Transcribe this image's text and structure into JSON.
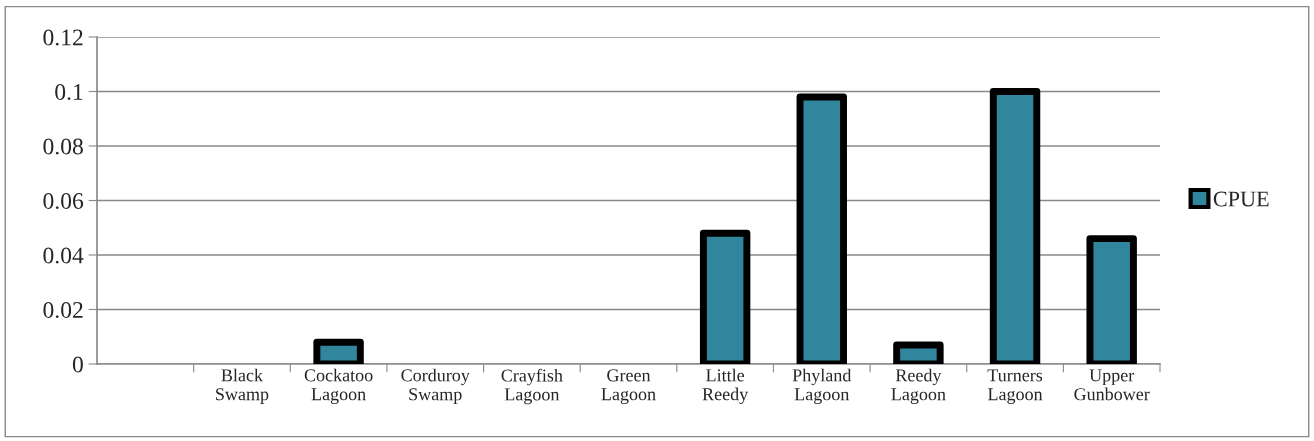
{
  "chart_data": {
    "type": "bar",
    "categories": [
      null,
      "Black\nSwamp",
      "Cockatoo\nLagoon",
      "Corduroy\nSwamp",
      "Crayfish\nLagoon",
      "Green\nLagoon",
      "Little\nReedy",
      "Phyland\nLagoon",
      "Reedy\nLagoon",
      "Turners\nLagoon",
      "Upper\nGunbower"
    ],
    "series": [
      {
        "name": "CPUE",
        "color": "#31859c",
        "values": [
          null,
          0,
          0.008,
          0,
          0,
          0,
          0.048,
          0.098,
          0.007,
          0.1,
          0.046
        ]
      }
    ],
    "ylim": [
      0,
      0.12
    ],
    "yticks": [
      0,
      0.02,
      0.04,
      0.06,
      0.08,
      0.1,
      0.12
    ],
    "grid": "y",
    "legend": "right"
  }
}
